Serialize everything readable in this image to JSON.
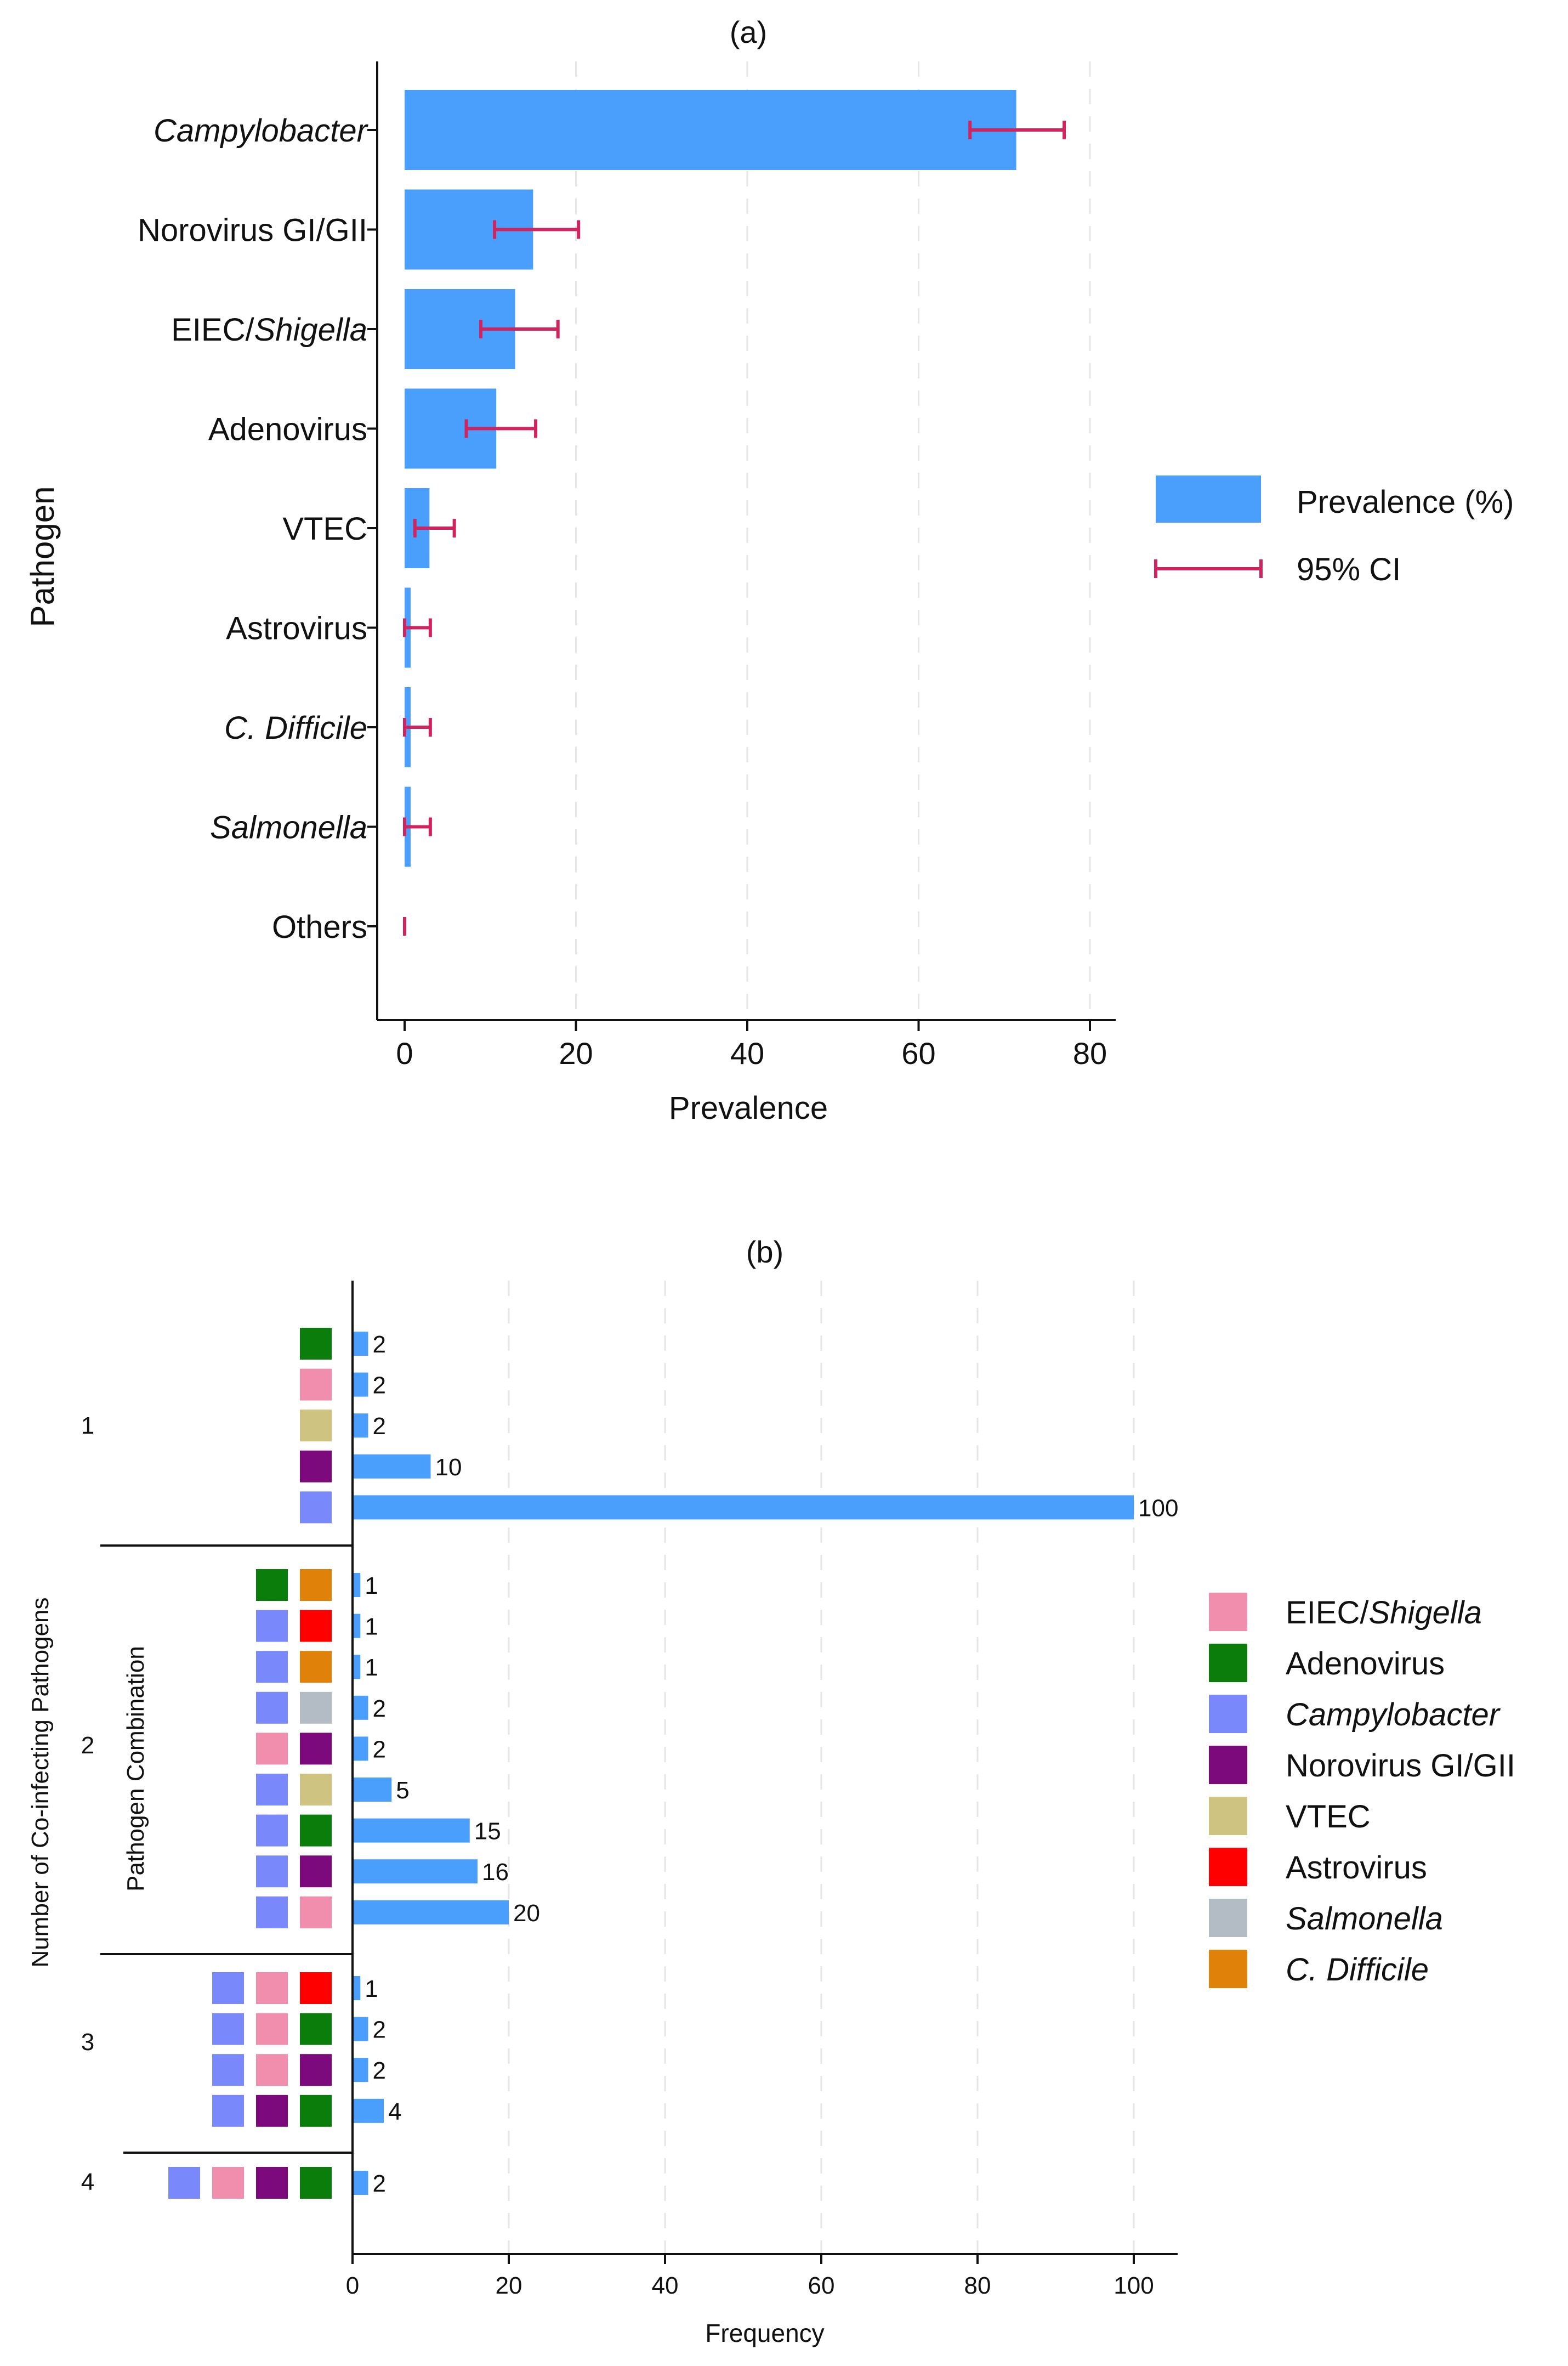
{
  "chart_data": [
    {
      "panel": "(a)",
      "type": "bar",
      "orientation": "horizontal",
      "title": "(a)",
      "xlabel": "Prevalence",
      "ylabel": "Pathogen",
      "xlim": [
        0,
        80
      ],
      "xticks": [
        0,
        20,
        40,
        60,
        80
      ],
      "grid": true,
      "legend_position": "right",
      "legend": [
        {
          "label": "Prevalence (%)",
          "kind": "bar"
        },
        {
          "label": "95% CI",
          "kind": "errorbar"
        }
      ],
      "categories": [
        {
          "name": "Campylobacter",
          "italic": true
        },
        {
          "name": "Norovirus GI/GII"
        },
        {
          "pre": "EIEC/",
          "it": "Shigella"
        },
        {
          "name": "Adenovirus"
        },
        {
          "name": "VTEC"
        },
        {
          "name": "Astrovirus"
        },
        {
          "name": "C. Difficile",
          "italic": true
        },
        {
          "name": "Salmonella",
          "italic": true
        },
        {
          "name": "Others"
        }
      ],
      "values": [
        71.4,
        15.0,
        12.9,
        10.7,
        2.9,
        0.7,
        0.7,
        0.7,
        0.0
      ],
      "ci_low": [
        66.0,
        10.5,
        8.9,
        7.2,
        1.2,
        0.0,
        0.0,
        0.0,
        0.0
      ],
      "ci_high": [
        77.0,
        20.3,
        17.9,
        15.3,
        5.8,
        3.0,
        3.0,
        3.0,
        0.0
      ]
    },
    {
      "panel": "(b)",
      "type": "bar",
      "orientation": "horizontal",
      "title": "(b)",
      "xlabel": "Frequency",
      "ylabel": "Number of Co-infecting Pathogens",
      "inner_label": "Pathogen Combination",
      "xlim": [
        0,
        100
      ],
      "xticks": [
        0,
        20,
        40,
        60,
        80,
        100
      ],
      "grid": true,
      "legend_position": "right",
      "pathogens": {
        "eiec": {
          "pre": "EIEC/",
          "it": "Shigella",
          "color": "#f28ead"
        },
        "adeno": {
          "name": "Adenovirus",
          "color": "#0a7d0a"
        },
        "campy": {
          "name": "Campylobacter",
          "italic": true,
          "color": "#7989fb"
        },
        "noro": {
          "name": "Norovirus GI/GII",
          "color": "#7d0a7d"
        },
        "vtec": {
          "name": "VTEC",
          "color": "#cfc382"
        },
        "astro": {
          "name": "Astrovirus",
          "color": "#ff0000"
        },
        "salm": {
          "name": "Salmonella",
          "italic": true,
          "color": "#b3bcc5"
        },
        "cdiff": {
          "name": "C. Difficile",
          "italic": true,
          "color": "#e0810a"
        }
      },
      "legend_order": [
        "eiec",
        "adeno",
        "campy",
        "noro",
        "vtec",
        "astro",
        "salm",
        "cdiff"
      ],
      "groups": [
        {
          "label": "1",
          "rows": [
            {
              "combo": [
                "adeno"
              ],
              "value": 2
            },
            {
              "combo": [
                "eiec"
              ],
              "value": 2
            },
            {
              "combo": [
                "vtec"
              ],
              "value": 2
            },
            {
              "combo": [
                "noro"
              ],
              "value": 10
            },
            {
              "combo": [
                "campy"
              ],
              "value": 100
            }
          ]
        },
        {
          "label": "2",
          "rows": [
            {
              "combo": [
                "adeno",
                "cdiff"
              ],
              "value": 1
            },
            {
              "combo": [
                "campy",
                "astro"
              ],
              "value": 1
            },
            {
              "combo": [
                "campy",
                "cdiff"
              ],
              "value": 1
            },
            {
              "combo": [
                "campy",
                "salm"
              ],
              "value": 2
            },
            {
              "combo": [
                "eiec",
                "noro"
              ],
              "value": 2
            },
            {
              "combo": [
                "campy",
                "vtec"
              ],
              "value": 5
            },
            {
              "combo": [
                "campy",
                "adeno"
              ],
              "value": 15
            },
            {
              "combo": [
                "campy",
                "noro"
              ],
              "value": 16
            },
            {
              "combo": [
                "campy",
                "eiec"
              ],
              "value": 20
            }
          ]
        },
        {
          "label": "3",
          "rows": [
            {
              "combo": [
                "campy",
                "eiec",
                "astro"
              ],
              "value": 1
            },
            {
              "combo": [
                "campy",
                "eiec",
                "adeno"
              ],
              "value": 2
            },
            {
              "combo": [
                "campy",
                "eiec",
                "noro"
              ],
              "value": 2
            },
            {
              "combo": [
                "campy",
                "noro",
                "adeno"
              ],
              "value": 4
            }
          ]
        },
        {
          "label": "4",
          "rows": [
            {
              "combo": [
                "campy",
                "eiec",
                "noro",
                "adeno"
              ],
              "value": 2
            }
          ]
        }
      ]
    }
  ],
  "colors": {
    "bar": "#4a9efc",
    "ci": "#d1245e",
    "grid": "#e6e6e6",
    "axis": "#111111"
  }
}
